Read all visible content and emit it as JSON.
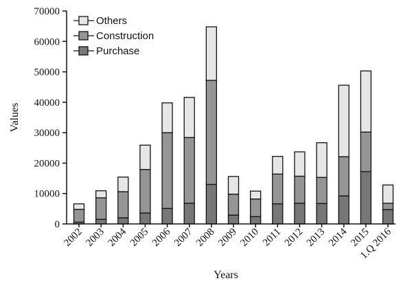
{
  "chart_data": {
    "type": "bar",
    "stacked": true,
    "title": "",
    "xlabel": "Years",
    "ylabel": "Values",
    "ylim": [
      0,
      70000
    ],
    "yticks": [
      0,
      10000,
      20000,
      30000,
      40000,
      50000,
      60000,
      70000
    ],
    "ytick_labels": [
      "0",
      "10000",
      "20000",
      "30000",
      "40000",
      "50000",
      "60000",
      "70000"
    ],
    "grid": false,
    "legend_position": "top-left",
    "categories": [
      "2002",
      "2003",
      "2004",
      "2005",
      "2006",
      "2007",
      "2008",
      "2009",
      "2010",
      "2011",
      "2012",
      "2013",
      "2014",
      "2015",
      "1.Q 2016"
    ],
    "series": [
      {
        "name": "Purchase",
        "color": "#777777",
        "values": [
          600,
          1500,
          2000,
          3600,
          5100,
          6800,
          13000,
          2900,
          2400,
          6600,
          6800,
          6700,
          9200,
          17200,
          4700
        ]
      },
      {
        "name": "Construction",
        "color": "#959595",
        "values": [
          4200,
          7100,
          8600,
          14300,
          24900,
          21600,
          34200,
          6900,
          5800,
          9800,
          8900,
          8600,
          12900,
          13000,
          2100
        ]
      },
      {
        "name": "Others",
        "color": "#e6e6e6",
        "values": [
          1800,
          2300,
          4800,
          8000,
          9800,
          13200,
          17600,
          5800,
          2600,
          5800,
          8000,
          11400,
          23500,
          20100,
          6000
        ]
      }
    ],
    "legend_order": [
      "Others",
      "Construction",
      "Purchase"
    ]
  }
}
